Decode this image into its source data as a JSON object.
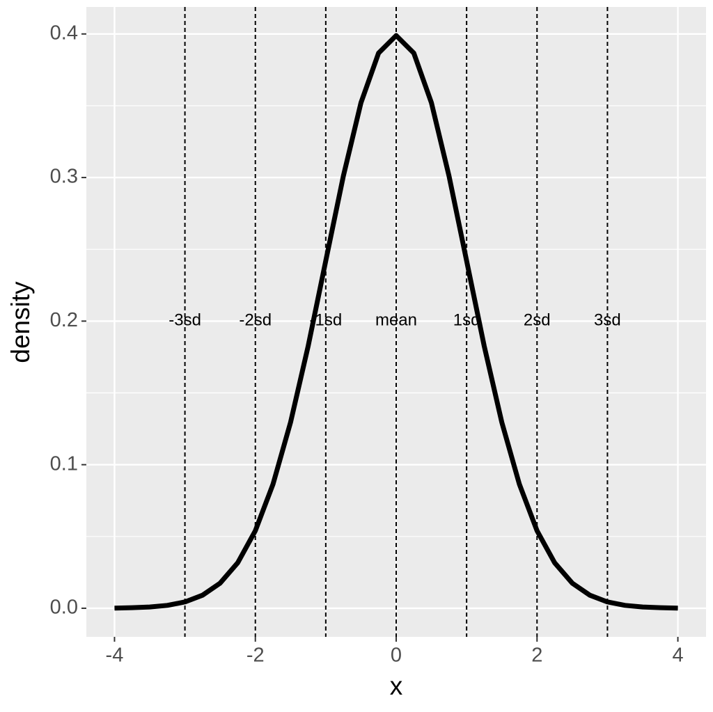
{
  "chart_data": {
    "type": "line",
    "x_label": "x",
    "y_label": "density",
    "x": [
      -4,
      -3.75,
      -3.5,
      -3.25,
      -3,
      -2.75,
      -2.5,
      -2.25,
      -2,
      -1.75,
      -1.5,
      -1.25,
      -1,
      -0.75,
      -0.5,
      -0.25,
      0,
      0.25,
      0.5,
      0.75,
      1,
      1.25,
      1.5,
      1.75,
      2,
      2.25,
      2.5,
      2.75,
      3,
      3.25,
      3.5,
      3.75,
      4
    ],
    "series": [
      {
        "color": "#000000",
        "values": [
          0.0001,
          0.0004,
          0.0009,
          0.002,
          0.0044,
          0.0091,
          0.0175,
          0.0317,
          0.054,
          0.0863,
          0.1295,
          0.1826,
          0.242,
          0.3011,
          0.3521,
          0.3867,
          0.3989,
          0.3867,
          0.3521,
          0.3011,
          0.242,
          0.1826,
          0.1295,
          0.0863,
          0.054,
          0.0317,
          0.0175,
          0.0091,
          0.0044,
          0.002,
          0.0009,
          0.0004,
          0.0001
        ]
      }
    ],
    "vlines": [
      -3,
      -2,
      -1,
      0,
      1,
      2,
      3
    ],
    "annotations": [
      {
        "x": -3,
        "y": 0.2,
        "text": "-3sd"
      },
      {
        "x": -2,
        "y": 0.2,
        "text": "-2sd"
      },
      {
        "x": -1,
        "y": 0.2,
        "text": "-1sd"
      },
      {
        "x": 0,
        "y": 0.2,
        "text": "mean"
      },
      {
        "x": 1,
        "y": 0.2,
        "text": "1sd"
      },
      {
        "x": 2,
        "y": 0.2,
        "text": "2sd"
      },
      {
        "x": 3,
        "y": 0.2,
        "text": "3sd"
      }
    ],
    "xlim": [
      -4.4,
      4.4
    ],
    "ylim": [
      -0.0199,
      0.4188
    ],
    "xticks": [
      -4,
      -2,
      0,
      2,
      4
    ],
    "yticks": [
      {
        "value": 0,
        "label": "0.0"
      },
      0.1,
      0.2,
      0.3,
      0.4
    ],
    "grid": true
  }
}
